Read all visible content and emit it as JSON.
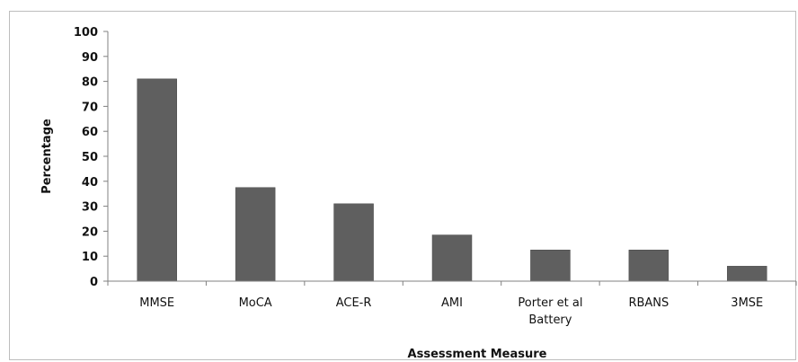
{
  "chart_data": {
    "type": "bar",
    "categories": [
      [
        "MMSE"
      ],
      [
        "MoCA"
      ],
      [
        "ACE-R"
      ],
      [
        "AMI"
      ],
      [
        "Porter et al",
        "Battery"
      ],
      [
        "RBANS"
      ],
      [
        "3MSE"
      ]
    ],
    "values": [
      81,
      37.5,
      31,
      18.5,
      12.5,
      12.5,
      6
    ],
    "xlabel": "Assessment Measure",
    "ylabel": "Percentage",
    "ylim": [
      0,
      100
    ],
    "yticks": [
      0,
      10,
      20,
      30,
      40,
      50,
      60,
      70,
      80,
      90,
      100
    ],
    "grid": false,
    "legend": "none",
    "bar_color": "#5f5f5f"
  }
}
